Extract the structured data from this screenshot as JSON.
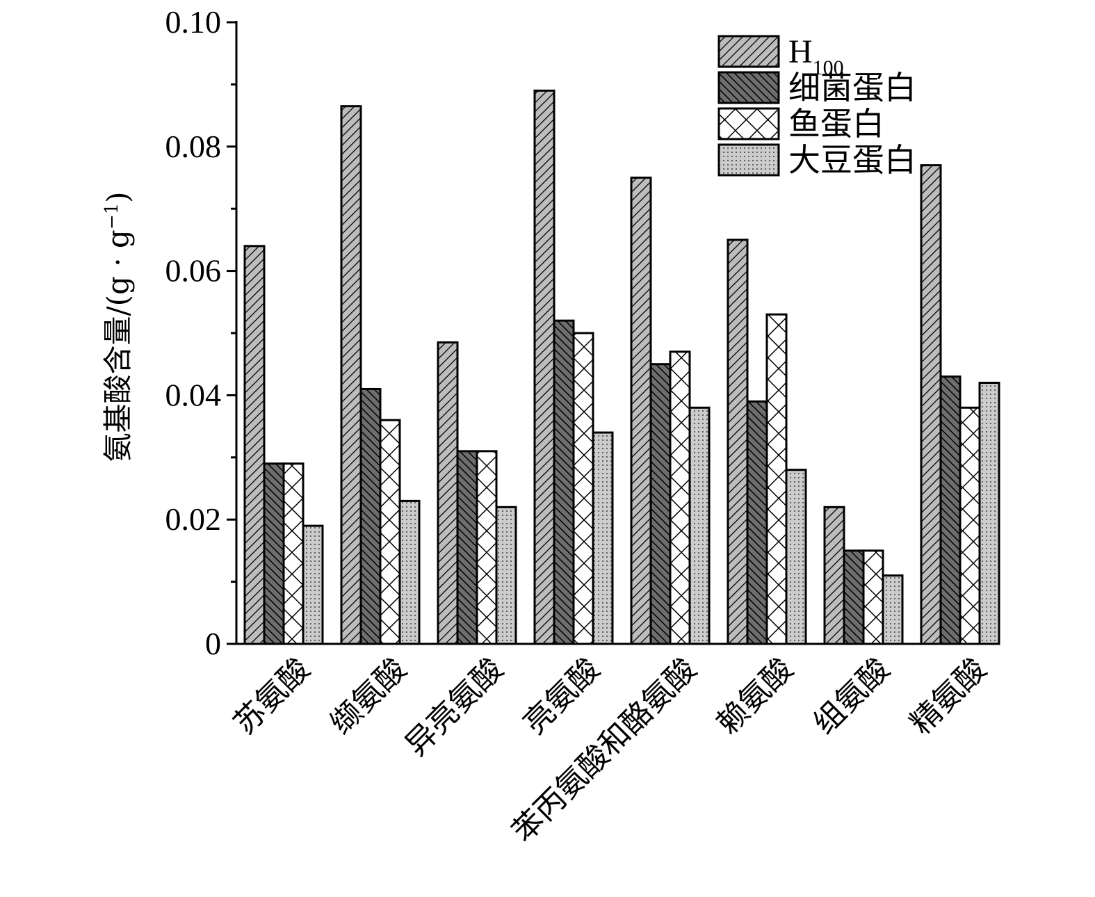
{
  "chart_data": {
    "type": "bar",
    "categories": [
      "苏氨酸",
      "缬氨酸",
      "异亮氨酸",
      "亮氨酸",
      "苯丙氨酸和酪氨酸",
      "赖氨酸",
      "组氨酸",
      "精氨酸"
    ],
    "series": [
      {
        "name": "H100",
        "name_main": "H",
        "name_sub": "100",
        "pattern": "diag-light",
        "values": [
          0.064,
          0.0865,
          0.0485,
          0.089,
          0.075,
          0.065,
          0.022,
          0.077
        ]
      },
      {
        "name": "细菌蛋白",
        "pattern": "diag-dark",
        "values": [
          0.029,
          0.041,
          0.031,
          0.052,
          0.045,
          0.039,
          0.015,
          0.043
        ]
      },
      {
        "name": "鱼蛋白",
        "pattern": "cross",
        "values": [
          0.029,
          0.036,
          0.031,
          0.05,
          0.047,
          0.053,
          0.015,
          0.038
        ]
      },
      {
        "name": "大豆蛋白",
        "pattern": "dots",
        "values": [
          0.019,
          0.023,
          0.022,
          0.034,
          0.038,
          0.028,
          0.011,
          0.042
        ]
      }
    ],
    "xlabel": "",
    "ylabel": "氨基酸含量/(g · g",
    "ylabel_sup": "−1",
    "ylabel_end": ")",
    "ylim": [
      0,
      0.1
    ],
    "yticks": [
      "0",
      "0.02",
      "0.04",
      "0.06",
      "0.08",
      "0.10"
    ],
    "ytick_values": [
      0,
      0.02,
      0.04,
      0.06,
      0.08,
      0.1
    ],
    "grid": false,
    "legend_position": "top-right",
    "colors": {
      "light": "#bdbdbd",
      "dark": "#6e6e6e",
      "white": "#ffffff",
      "dots": "#cccccc"
    }
  }
}
